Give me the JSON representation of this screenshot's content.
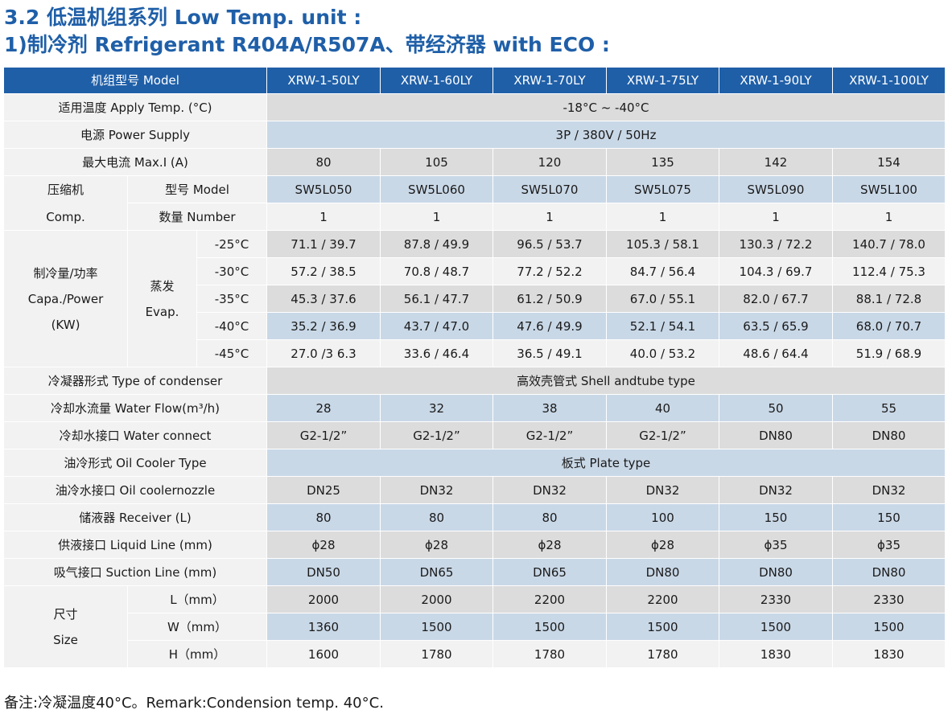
{
  "title_line1": "3.2 低温机组系列 Low Temp. unit :",
  "title_line2": "1)制冷剂 Refrigerant  R404A/R507A、带经济器 with ECO :",
  "header": {
    "label": "机组型号 Model",
    "models": [
      "XRW-1-50LY",
      "XRW-1-60LY",
      "XRW-1-70LY",
      "XRW-1-75LY",
      "XRW-1-90LY",
      "XRW-1-100LY"
    ]
  },
  "apply_temp": {
    "label": "适用温度 Apply Temp. (°C)",
    "value": "-18°C ~ -40°C"
  },
  "power_supply": {
    "label": "电源 Power Supply",
    "value": "3P / 380V / 50Hz"
  },
  "max_current": {
    "label": "最大电流 Max.I (A)",
    "values": [
      "80",
      "105",
      "120",
      "135",
      "142",
      "154"
    ]
  },
  "compressor": {
    "label_cn": "压缩机",
    "label_en": "Comp.",
    "model": {
      "label": "型号 Model",
      "values": [
        "SW5L050",
        "SW5L060",
        "SW5L070",
        "SW5L075",
        "SW5L090",
        "SW5L100"
      ]
    },
    "number": {
      "label": "数量 Number",
      "values": [
        "1",
        "1",
        "1",
        "1",
        "1",
        "1"
      ]
    }
  },
  "capacity": {
    "label_cn": "制冷量/功率",
    "label_en": "Capa./Power",
    "label_unit": "(KW)",
    "evap_cn": "蒸发",
    "evap_en": "Evap.",
    "rows": [
      {
        "temp": "-25°C",
        "values": [
          "71.1 / 39.7",
          "87.8 / 49.9",
          "96.5 / 53.7",
          "105.3 / 58.1",
          "130.3 / 72.2",
          "140.7 / 78.0"
        ]
      },
      {
        "temp": "-30°C",
        "values": [
          "57.2 / 38.5",
          "70.8 / 48.7",
          "77.2 / 52.2",
          "84.7 / 56.4",
          "104.3 / 69.7",
          "112.4 / 75.3"
        ]
      },
      {
        "temp": "-35°C",
        "values": [
          "45.3 / 37.6",
          "56.1 / 47.7",
          "61.2 / 50.9",
          "67.0 / 55.1",
          "82.0 / 67.7",
          "88.1 / 72.8"
        ]
      },
      {
        "temp": "-40°C",
        "values": [
          "35.2 / 36.9",
          "43.7 / 47.0",
          "47.6 / 49.9",
          "52.1 / 54.1",
          "63.5 / 65.9",
          "68.0 / 70.7"
        ]
      },
      {
        "temp": "-45°C",
        "values": [
          "27.0 /3 6.3",
          "33.6 / 46.4",
          "36.5 / 49.1",
          "40.0 / 53.2",
          "48.6 / 64.4",
          "51.9 / 68.9"
        ]
      }
    ]
  },
  "condenser_type": {
    "label": "冷凝器形式 Type of condenser",
    "value": "高效壳管式 Shell andtube type"
  },
  "water_flow": {
    "label": "冷却水流量 Water Flow(m³/h)",
    "values": [
      "28",
      "32",
      "38",
      "40",
      "50",
      "55"
    ]
  },
  "water_connect": {
    "label": "冷却水接口 Water connect",
    "values": [
      "G2-1/2”",
      "G2-1/2”",
      "G2-1/2”",
      "G2-1/2”",
      "DN80",
      "DN80"
    ]
  },
  "oil_cooler_type": {
    "label": "油冷形式 Oil Cooler Type",
    "value": "板式  Plate type"
  },
  "oil_cooler_nozzle": {
    "label": "油冷水接口 Oil coolernozzle",
    "values": [
      "DN25",
      "DN32",
      "DN32",
      "DN32",
      "DN32",
      "DN32"
    ]
  },
  "receiver": {
    "label": "储液器 Receiver (L)",
    "values": [
      "80",
      "80",
      "80",
      "100",
      "150",
      "150"
    ]
  },
  "liquid_line": {
    "label": "供液接口 Liquid Line (mm)",
    "values": [
      "ϕ28",
      "ϕ28",
      "ϕ28",
      "ϕ28",
      "ϕ35",
      "ϕ35"
    ]
  },
  "suction_line": {
    "label": "吸气接口 Suction Line (mm)",
    "values": [
      "DN50",
      "DN65",
      "DN65",
      "DN80",
      "DN80",
      "DN80"
    ]
  },
  "size": {
    "label_cn": "尺寸",
    "label_en": "Size",
    "rows": [
      {
        "label": "L（mm）",
        "values": [
          "2000",
          "2000",
          "2200",
          "2200",
          "2330",
          "2330"
        ]
      },
      {
        "label": "W（mm）",
        "values": [
          "1360",
          "1500",
          "1500",
          "1500",
          "1500",
          "1500"
        ]
      },
      {
        "label": "H（mm）",
        "values": [
          "1600",
          "1780",
          "1780",
          "1780",
          "1830",
          "1830"
        ]
      }
    ]
  },
  "remark": "备注:冷凝温度40°C。Remark:Condension temp. 40°C."
}
